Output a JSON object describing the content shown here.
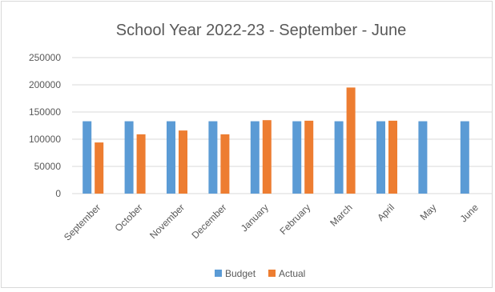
{
  "chart_data": {
    "type": "bar",
    "title": "School Year 2022-23 - September - June",
    "xlabel": "",
    "ylabel": "",
    "categories": [
      "September",
      "October",
      "November",
      "December",
      "January",
      "February",
      "March",
      "April",
      "May",
      "June"
    ],
    "series": [
      {
        "name": "Budget",
        "color": "#5b9bd5",
        "values": [
          133000,
          133000,
          133000,
          133000,
          133000,
          133000,
          133000,
          133000,
          133000,
          133000
        ]
      },
      {
        "name": "Actual",
        "color": "#ed7d31",
        "values": [
          94000,
          109000,
          116000,
          109000,
          135000,
          134000,
          195000,
          134000,
          null,
          null
        ]
      }
    ],
    "ylim": [
      0,
      250000
    ],
    "yticks": [
      "0",
      "50000",
      "100000",
      "150000",
      "200000",
      "250000"
    ],
    "grid": true,
    "legend_position": "bottom"
  }
}
